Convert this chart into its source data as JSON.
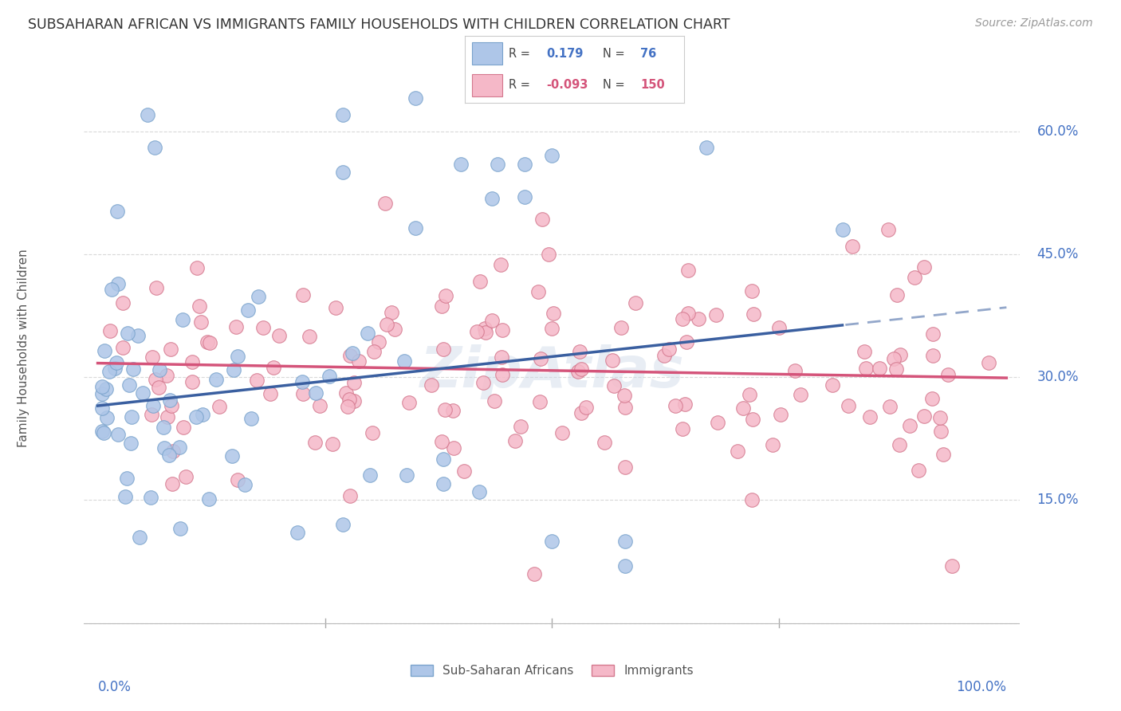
{
  "title": "SUBSAHARAN AFRICAN VS IMMIGRANTS FAMILY HOUSEHOLDS WITH CHILDREN CORRELATION CHART",
  "source": "Source: ZipAtlas.com",
  "ylabel": "Family Households with Children",
  "blue_R": 0.179,
  "blue_N": 76,
  "pink_R": -0.093,
  "pink_N": 150,
  "blue_color": "#aec6e8",
  "blue_edge_color": "#7aa3cc",
  "blue_line_color": "#3a5fa0",
  "pink_color": "#f5b8c8",
  "pink_edge_color": "#d4788e",
  "pink_line_color": "#d4547a",
  "legend_label_blue": "Sub-Saharan Africans",
  "legend_label_pink": "Immigrants",
  "background_color": "#ffffff",
  "grid_color": "#d0d0d0",
  "title_color": "#333333",
  "axis_label_color": "#4472c4",
  "watermark_color": "#ccd8e8",
  "source_color": "#999999"
}
